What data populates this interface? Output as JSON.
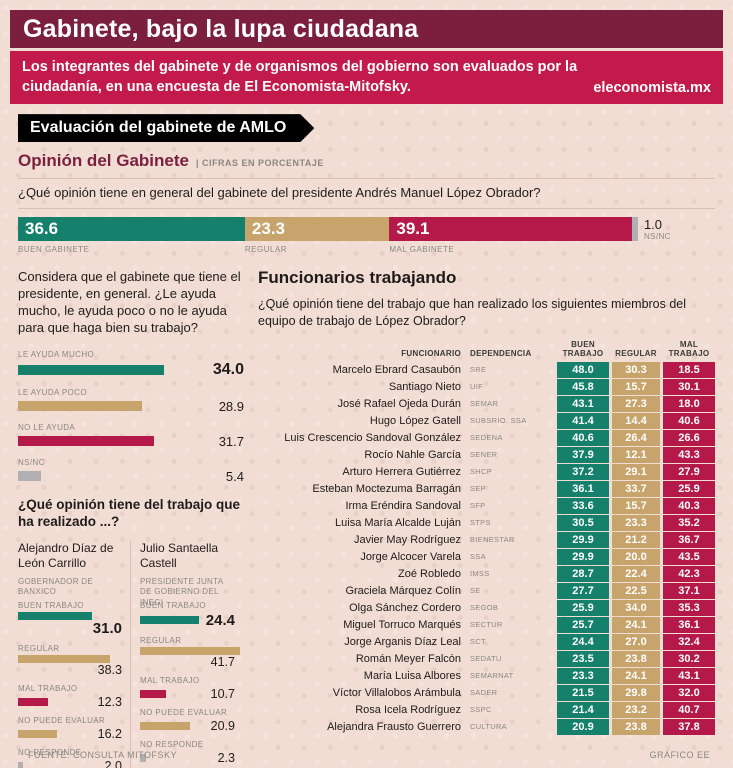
{
  "colors": {
    "bg": "#f2ddd4",
    "maroon": "#7c1e3e",
    "red": "#c21a4b",
    "teal": "#15806b",
    "tan": "#c7a46c",
    "crimson": "#b5194a",
    "gray": "#b2afb2",
    "text": "#201b1b",
    "muted": "#8b8683",
    "rule": "#d9c0b6"
  },
  "header": {
    "title": "Gabinete, bajo la lupa ciudadana",
    "subtitle": "Los integrantes del gabinete y de organismos del gobierno son evaluados por la ciudadanía, en una encuesta de El Economista-Mitofsky.",
    "site": "eleconomista.mx",
    "banner": "Evaluación del gabinete de AMLO",
    "section_title": "Opinión del Gabinete",
    "units_note": "| CIFRAS EN PORCENTAJE"
  },
  "footer": {
    "source": "FUENTE: CONSULTA MITOFSKY",
    "credit": "GRÁFICO EE"
  },
  "chart_data": [
    {
      "type": "bar",
      "layout": "horizontal-stacked",
      "unit": "percent",
      "question": "¿Qué opinión tiene en general del gabinete del presidente Andrés Manuel López Obrador?",
      "categories": [
        "BUEN GABINETE",
        "REGULAR",
        "MAL GABINETE",
        "NS/NC"
      ],
      "values": [
        "36.6",
        "23.3",
        "39.1",
        "1.0"
      ]
    },
    {
      "type": "bar",
      "layout": "horizontal-bars",
      "unit": "percent",
      "question": "Considera que el gabinete que tiene el presidente, en general. ¿Le ayuda mucho, le ayuda poco o no le ayuda para que haga bien su trabajo?",
      "categories": [
        "LE AYUDA MUCHO",
        "LE AYUDA POCO",
        "NO LE AYUDA",
        "NS/NC"
      ],
      "values": [
        "34.0",
        "28.9",
        "31.7",
        "5.4"
      ]
    },
    {
      "type": "bar",
      "layout": "horizontal-bars",
      "unit": "percent",
      "question": "¿Qué opinión tiene del trabajo que ha realizado ...?",
      "categories": [
        "BUEN TRABAJO",
        "REGULAR",
        "MAL TRABAJO",
        "NO PUEDE EVALUAR",
        "NO RESPONDE"
      ],
      "series": [
        {
          "name": "Alejandro Díaz de León Carrillo",
          "role": "GOBERNADOR DE BANXICO",
          "values": [
            "31.0",
            "38.3",
            "12.3",
            "16.2",
            "2.0"
          ]
        },
        {
          "name": "Julio Santaella Castell",
          "role": "PRESIDENTE JUNTA DE GOBIERNO DEL INEGI",
          "values": [
            "24.4",
            "41.7",
            "10.7",
            "20.9",
            "2.3"
          ]
        }
      ]
    },
    {
      "type": "table",
      "title": "Funcionarios trabajando",
      "unit": "percent",
      "question": "¿Qué opinión tiene del trabajo que han realizado los siguientes miembros del equipo de trabajo de López Obrador?",
      "columns": [
        "FUNCIONARIO",
        "DEPENDENCIA",
        "BUEN TRABAJO",
        "REGULAR",
        "MAL TRABAJO"
      ],
      "rows": [
        {
          "name": "Marcelo Ebrard Casaubón",
          "dep": "SRE",
          "buen": "48.0",
          "reg": "30.3",
          "mal": "18.5"
        },
        {
          "name": "Santiago Nieto",
          "dep": "UIF",
          "buen": "45.8",
          "reg": "15.7",
          "mal": "30.1"
        },
        {
          "name": "José Rafael Ojeda Durán",
          "dep": "SEMAR",
          "buen": "43.1",
          "reg": "27.3",
          "mal": "18.0"
        },
        {
          "name": "Hugo López Gatell",
          "dep": "SUBSRIO. SSA",
          "buen": "41.4",
          "reg": "14.4",
          "mal": "40.6"
        },
        {
          "name": "Luis Crescencio Sandoval González",
          "dep": "SEDENA",
          "buen": "40.6",
          "reg": "26.4",
          "mal": "26.6"
        },
        {
          "name": "Rocío Nahle García",
          "dep": "SENER",
          "buen": "37.9",
          "reg": "12.1",
          "mal": "43.3"
        },
        {
          "name": "Arturo Herrera Gutiérrez",
          "dep": "SHCP",
          "buen": "37.2",
          "reg": "29.1",
          "mal": "27.9"
        },
        {
          "name": "Esteban Moctezuma Barragán",
          "dep": "SEP",
          "buen": "36.1",
          "reg": "33.7",
          "mal": "25.9"
        },
        {
          "name": "Irma Eréndira Sandoval",
          "dep": "SFP",
          "buen": "33.6",
          "reg": "15.7",
          "mal": "40.3"
        },
        {
          "name": "Luisa María Alcalde Luján",
          "dep": "STPS",
          "buen": "30.5",
          "reg": "23.3",
          "mal": "35.2"
        },
        {
          "name": "Javier May Rodríguez",
          "dep": "BIENESTAR",
          "buen": "29.9",
          "reg": "21.2",
          "mal": "36.7"
        },
        {
          "name": "Jorge Alcocer Varela",
          "dep": "SSA",
          "buen": "29.9",
          "reg": "20.0",
          "mal": "43.5"
        },
        {
          "name": "Zoé Robledo",
          "dep": "IMSS",
          "buen": "28.7",
          "reg": "22.4",
          "mal": "42.3"
        },
        {
          "name": "Graciela Márquez Colín",
          "dep": "SE",
          "buen": "27.7",
          "reg": "22.5",
          "mal": "37.1"
        },
        {
          "name": "Olga Sánchez Cordero",
          "dep": "SEGOB",
          "buen": "25.9",
          "reg": "34.0",
          "mal": "35.3"
        },
        {
          "name": "Miguel Torruco Marqués",
          "dep": "SECTUR",
          "buen": "25.7",
          "reg": "24.1",
          "mal": "36.1"
        },
        {
          "name": "Jorge Arganis Díaz Leal",
          "dep": "SCT",
          "buen": "24.4",
          "reg": "27.0",
          "mal": "32.4"
        },
        {
          "name": "Román Meyer Falcón",
          "dep": "SEDATU",
          "buen": "23.5",
          "reg": "23.8",
          "mal": "30.2"
        },
        {
          "name": "María Luisa Albores",
          "dep": "SEMARNAT",
          "buen": "23.3",
          "reg": "24.1",
          "mal": "43.1"
        },
        {
          "name": "Víctor Villalobos Arámbula",
          "dep": "SADER",
          "buen": "21.5",
          "reg": "29.8",
          "mal": "32.0"
        },
        {
          "name": "Rosa Icela Rodríguez",
          "dep": "SSPC",
          "buen": "21.4",
          "reg": "23.2",
          "mal": "40.7"
        },
        {
          "name": "Alejandra Frausto Guerrero",
          "dep": "CULTURA",
          "buen": "20.9",
          "reg": "23.8",
          "mal": "37.8"
        }
      ]
    }
  ]
}
